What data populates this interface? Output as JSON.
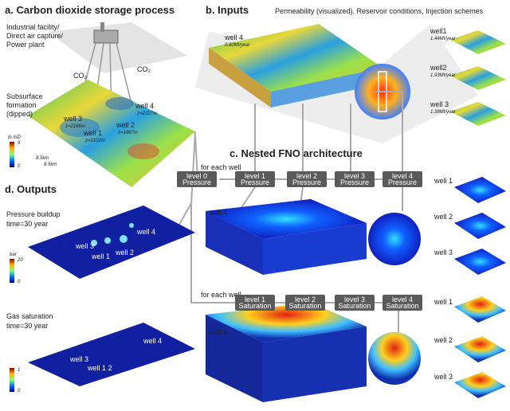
{
  "panel_a": {
    "title": "a. Carbon dioxide storage process",
    "source_lines": [
      "Industrial facility/",
      "Direct air capture/",
      "Power plant"
    ],
    "co2": [
      "CO₂",
      "CO₂"
    ],
    "formation_lines": [
      "Subsurface",
      "formation",
      "(dipped)"
    ],
    "colorbar_unit": "ln mD",
    "colorbar_max": 9,
    "colorbar_min": 0,
    "wells": [
      {
        "name": "well 4",
        "depth": "z=2127m"
      },
      {
        "name": "well 3",
        "depth": "z=2166m"
      },
      {
        "name": "well 2",
        "depth": "z=1867m"
      },
      {
        "name": "well 1",
        "depth": "z=2102m"
      }
    ],
    "scale_labels": [
      "8.5km",
      "8.5km"
    ]
  },
  "panel_b": {
    "title": "b. Inputs",
    "subtitle": "Permeability (visualized), Reservoir conditions, Injection schemes",
    "main_well": {
      "name": "well 4",
      "rate": "0.80Mt/year"
    },
    "side_wells": [
      {
        "name": "well1",
        "rate": "1.44Mt/year"
      },
      {
        "name": "well2",
        "rate": "1.93Mt/year"
      },
      {
        "name": "well 3",
        "rate": "1.38Mt/year"
      }
    ]
  },
  "panel_c": {
    "title": "c. Nested FNO architecture",
    "for_each_well": [
      "for each well",
      "for each well"
    ],
    "pressure_levels": [
      {
        "name": "level 0",
        "kind": "Pressure"
      },
      {
        "name": "level 1",
        "kind": "Pressure"
      },
      {
        "name": "level 2",
        "kind": "Pressure"
      },
      {
        "name": "level 3",
        "kind": "Pressure"
      },
      {
        "name": "level 4",
        "kind": "Pressure"
      }
    ],
    "saturation_levels": [
      {
        "name": "level 1",
        "kind": "Saturation"
      },
      {
        "name": "level 2",
        "kind": "Saturation"
      },
      {
        "name": "level 3",
        "kind": "Saturation"
      },
      {
        "name": "level 4",
        "kind": "Saturation"
      }
    ],
    "pressure_well": "well 4",
    "saturation_well": "well 4",
    "side_pressure_wells": [
      "well 1",
      "well 2",
      "well 3"
    ],
    "side_saturation_wells": [
      "well 1",
      "well 2",
      "well 3"
    ]
  },
  "panel_d": {
    "title": "d. Outputs",
    "pressure": {
      "label": "Pressure buildup",
      "time": "time=30 year",
      "unit": "bar",
      "max": 20,
      "min": 0,
      "wells": [
        "well 3",
        "well 1",
        "well 2",
        "well 4"
      ]
    },
    "saturation": {
      "label": "Gas saturation",
      "time": "time=30 year",
      "max": 1,
      "min": 0,
      "wells": [
        "well 3",
        "well 1 2",
        "well 4"
      ]
    }
  }
}
